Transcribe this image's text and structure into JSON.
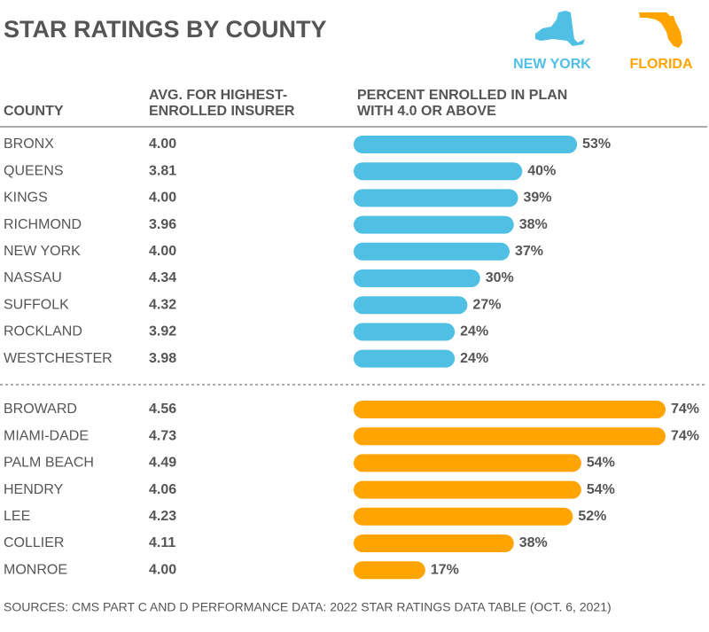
{
  "chart_data": {
    "type": "bar",
    "orientation": "horizontal",
    "title": "STAR RATINGS BY COUNTY",
    "columns": [
      [
        "COUNTY"
      ],
      [
        "AVG. FOR HIGHEST-",
        "ENROLLED INSURER"
      ],
      [
        "PERCENT ENROLLED IN PLAN",
        "WITH 4.0 OR ABOVE"
      ]
    ],
    "series": [
      {
        "name": "NEW YORK",
        "color": "#4fbfe4",
        "categories": [
          "BRONX",
          "QUEENS",
          "KINGS",
          "RICHMOND",
          "NEW YORK",
          "NASSAU",
          "SUFFOLK",
          "ROCKLAND",
          "WESTCHESTER"
        ],
        "averages": [
          "4.00",
          "3.81",
          "4.00",
          "3.96",
          "4.00",
          "4.34",
          "4.32",
          "3.92",
          "3.98"
        ],
        "values": [
          53,
          40,
          39,
          38,
          37,
          30,
          27,
          24,
          24
        ],
        "value_labels": [
          "53%",
          "40%",
          "39%",
          "38%",
          "37%",
          "30%",
          "27%",
          "24%",
          "24%"
        ]
      },
      {
        "name": "FLORIDA",
        "color": "#ffa400",
        "categories": [
          "BROWARD",
          "MIAMI-DADE",
          "PALM BEACH",
          "HENDRY",
          "LEE",
          "COLLIER",
          "MONROE"
        ],
        "averages": [
          "4.56",
          "4.73",
          "4.49",
          "4.06",
          "4.23",
          "4.11",
          "4.00"
        ],
        "values": [
          74,
          74,
          54,
          54,
          52,
          38,
          17
        ],
        "value_labels": [
          "74%",
          "74%",
          "54%",
          "54%",
          "52%",
          "38%",
          "17%"
        ]
      }
    ],
    "source": "SOURCES: CMS PART C AND D PERFORMANCE DATA: 2022 STAR RATINGS DATA TABLE (OCT. 6, 2021)"
  }
}
